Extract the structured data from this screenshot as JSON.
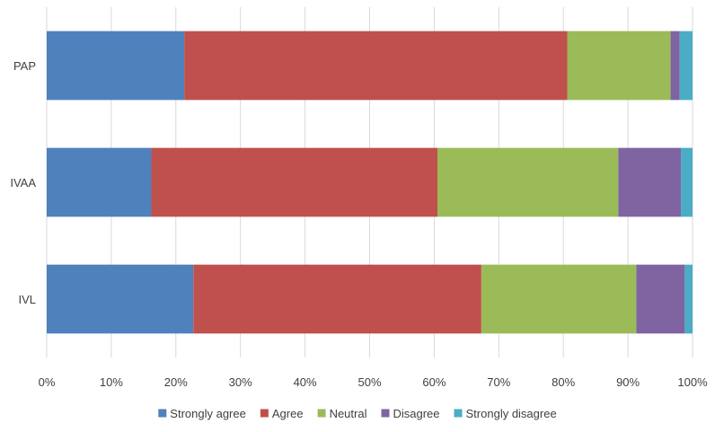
{
  "chart_data": {
    "type": "bar",
    "orientation": "horizontal",
    "stacked": true,
    "normalized": true,
    "title": "",
    "xlabel": "",
    "ylabel": "",
    "categories": [
      "PAP",
      "IVAA",
      "IVL"
    ],
    "series": [
      {
        "name": "Strongly agree",
        "color": "#4F81BD",
        "values": [
          21.3,
          16.2,
          22.7
        ]
      },
      {
        "name": "Agree",
        "color": "#C0504D",
        "values": [
          59.3,
          44.3,
          44.6
        ]
      },
      {
        "name": "Neutral",
        "color": "#9BBB59",
        "values": [
          16.0,
          28.0,
          24.0
        ]
      },
      {
        "name": "Disagree",
        "color": "#8064A2",
        "values": [
          1.4,
          9.7,
          7.5
        ]
      },
      {
        "name": "Strongly disagree",
        "color": "#4BACC6",
        "values": [
          2.0,
          1.8,
          1.2
        ]
      }
    ],
    "xlim": [
      0,
      100
    ],
    "x_ticks": [
      "0%",
      "10%",
      "20%",
      "30%",
      "40%",
      "50%",
      "60%",
      "70%",
      "80%",
      "90%",
      "100%"
    ],
    "grid": true,
    "legend": "bottom"
  }
}
